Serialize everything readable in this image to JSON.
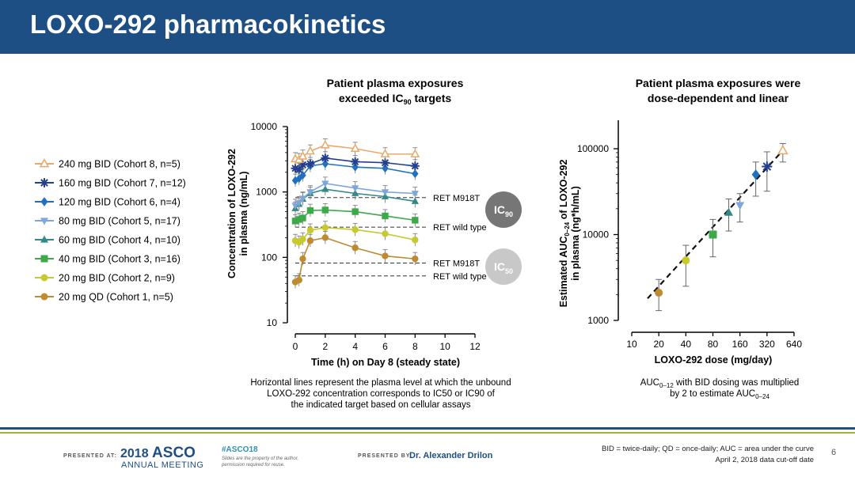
{
  "title": "LOXO-292 pharmacokinetics",
  "colors": {
    "header": "#1e4f84",
    "accent": "#9ab43a"
  },
  "left_chart": {
    "title_line1": "Patient plasma exposures",
    "title_line2_pre": "exceeded IC",
    "title_line2_sub": "90",
    "title_line2_post": " targets",
    "ylabel_line1": "Concentration of LOXO-292",
    "ylabel_line2": "in plasma (ng/mL)",
    "xlabel": "Time (h) on Day 8 (steady state)",
    "ic90_label": "IC",
    "ic90_sub": "90",
    "ic50_label": "IC",
    "ic50_sub": "50",
    "caption": [
      "Horizontal lines represent the plasma level at which the unbound",
      "LOXO-292 concentration corresponds to IC50 or IC90 of",
      "the indicated target based on cellular assays"
    ]
  },
  "right_chart": {
    "title_line1": "Patient plasma exposures were",
    "title_line2": "dose-dependent and linear",
    "ylabel_pre": "Estimated AUC",
    "ylabel_sub": "0–24",
    "ylabel_post": " of LOXO-292",
    "ylabel_line2": "in plasma (ng*h/mL)",
    "xlabel": "LOXO-292 dose (mg/day)",
    "caption_line1_pre": "AUC",
    "caption_line1_sub": "0–12",
    "caption_line1_post": " with BID dosing was multiplied",
    "caption_line2_pre": "by 2 to estimate AUC",
    "caption_line2_sub": "0–24"
  },
  "chart_data": [
    {
      "type": "line",
      "yscale": "log",
      "xlim": [
        0,
        12
      ],
      "ylim": [
        10,
        10000
      ],
      "xticks": [
        0,
        2,
        4,
        6,
        8,
        10,
        12
      ],
      "yticks": [
        10,
        100,
        1000,
        10000
      ],
      "x": [
        0,
        0.25,
        0.5,
        1,
        2,
        4,
        6,
        8
      ],
      "series": [
        {
          "name": "240 mg BID (Cohort 8, n=5)",
          "color": "#e8a96a",
          "marker": "triangle-open",
          "values": [
            3200,
            3100,
            3500,
            4200,
            5200,
            4600,
            3800,
            3800
          ]
        },
        {
          "name": "160 mg BID (Cohort 7, n=12)",
          "color": "#253f8f",
          "marker": "asterisk",
          "values": [
            2300,
            2200,
            2600,
            2700,
            3300,
            2900,
            2800,
            2500
          ]
        },
        {
          "name": "120 mg BID (Cohort 6, n=4)",
          "color": "#1f6fc2",
          "marker": "diamond",
          "values": [
            1500,
            1600,
            1800,
            2500,
            2700,
            2400,
            2300,
            1900
          ]
        },
        {
          "name": "80 mg BID (Cohort 5, n=17)",
          "color": "#7ea6da",
          "marker": "triangle-down",
          "values": [
            620,
            680,
            800,
            1000,
            1350,
            1150,
            1000,
            950
          ]
        },
        {
          "name": "60 mg BID (Cohort 4, n=10)",
          "color": "#2f8a86",
          "marker": "triangle",
          "values": [
            560,
            650,
            780,
            950,
            1100,
            950,
            850,
            720
          ]
        },
        {
          "name": "40 mg BID (Cohort 3, n=16)",
          "color": "#3daa4a",
          "marker": "square",
          "values": [
            360,
            380,
            400,
            520,
            530,
            500,
            430,
            370
          ]
        },
        {
          "name": "20 mg BID (Cohort 2, n=9)",
          "color": "#c6ca2c",
          "marker": "circle",
          "values": [
            180,
            170,
            190,
            260,
            285,
            265,
            230,
            185
          ]
        },
        {
          "name": "20 mg QD (Cohort 1, n=5)",
          "color": "#c08a30",
          "marker": "circle",
          "values": [
            42,
            45,
            95,
            180,
            200,
            140,
            105,
            95
          ]
        }
      ],
      "reference_lines": [
        {
          "label": "RET M918T",
          "value": 820,
          "group": "IC90"
        },
        {
          "label": "RET wild type",
          "value": 290,
          "group": "IC90"
        },
        {
          "label": "RET M918T",
          "value": 82,
          "group": "IC50"
        },
        {
          "label": "RET wild type",
          "value": 52,
          "group": "IC50"
        }
      ]
    },
    {
      "type": "scatter",
      "xscale": "log2",
      "yscale": "log",
      "xlim": [
        10,
        640
      ],
      "ylim": [
        1000,
        150000
      ],
      "xticks": [
        10,
        20,
        40,
        80,
        160,
        320,
        640
      ],
      "yticks": [
        1000,
        10000,
        100000
      ],
      "trendline": {
        "style": "dashed",
        "x": [
          15,
          500
        ],
        "y": [
          1800,
          100000
        ]
      },
      "points": [
        {
          "x": 20,
          "y": 2100,
          "err_low": 1300,
          "err_high": 3000,
          "color": "#c08a30",
          "marker": "circle"
        },
        {
          "x": 40,
          "y": 5000,
          "err_low": 2500,
          "err_high": 7500,
          "color": "#c6ca2c",
          "marker": "circle"
        },
        {
          "x": 80,
          "y": 10000,
          "err_low": 5500,
          "err_high": 15000,
          "color": "#3daa4a",
          "marker": "square"
        },
        {
          "x": 120,
          "y": 18000,
          "err_low": 11000,
          "err_high": 26000,
          "color": "#2f8a86",
          "marker": "triangle"
        },
        {
          "x": 160,
          "y": 22000,
          "err_low": 14000,
          "err_high": 30000,
          "color": "#7ea6da",
          "marker": "triangle-down"
        },
        {
          "x": 240,
          "y": 50000,
          "err_low": 28000,
          "err_high": 70000,
          "color": "#1f6fc2",
          "marker": "diamond"
        },
        {
          "x": 320,
          "y": 62000,
          "err_low": 32000,
          "err_high": 92000,
          "color": "#253f8f",
          "marker": "asterisk"
        },
        {
          "x": 480,
          "y": 95000,
          "err_low": 70000,
          "err_high": 115000,
          "color": "#e8a96a",
          "marker": "triangle-open"
        }
      ]
    }
  ],
  "footer": {
    "presented_at": "PRESENTED AT:",
    "asco_year": "2018",
    "asco_name": "ASCO",
    "asco_sub": "ANNUAL MEETING",
    "hashtag": "#ASCO18",
    "permission_line1": "Slides are the property of the author,",
    "permission_line2": "permission required for reuse.",
    "presented_by": "PRESENTED BY:",
    "presenter": "Dr. Alexander Drilon",
    "abbrev": "BID = twice-daily; QD = once-daily; AUC = area under the curve",
    "cutoff": "April 2, 2018 data cut-off date",
    "page_number": "6"
  }
}
